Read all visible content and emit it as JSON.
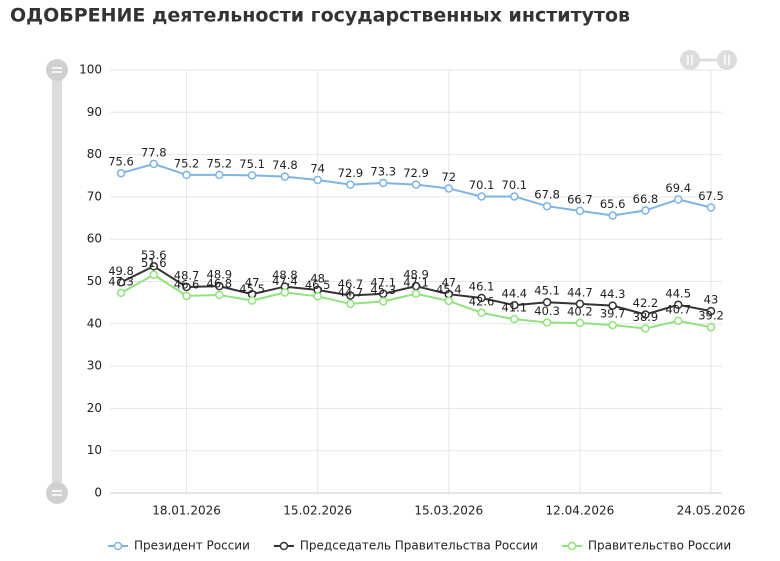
{
  "chart_data": {
    "type": "line",
    "title": "ОДОБРЕНИЕ деятельности государственных институтов",
    "categories": [
      null,
      null,
      "18.01.2026",
      null,
      null,
      null,
      "15.02.2026",
      null,
      null,
      null,
      "15.03.2026",
      null,
      null,
      null,
      "12.04.2026",
      null,
      null,
      null,
      "24.05.2026"
    ],
    "series": [
      {
        "name": "Президент России",
        "color": "#7eb3e3",
        "values": [
          75.6,
          77.8,
          75.2,
          75.2,
          75.1,
          74.8,
          74,
          72.9,
          73.3,
          72.9,
          72,
          70.1,
          70.1,
          67.8,
          66.7,
          65.6,
          66.8,
          69.4,
          67.5
        ]
      },
      {
        "name": "Председатель Правительства России",
        "color": "#333333",
        "values": [
          49.8,
          53.6,
          48.7,
          48.9,
          47,
          48.8,
          48,
          46.7,
          47.1,
          48.9,
          47,
          46.1,
          44.4,
          45.1,
          44.7,
          44.3,
          42.2,
          44.5,
          43
        ]
      },
      {
        "name": "Правительство России",
        "color": "#90e27c",
        "values": [
          47.3,
          51.6,
          46.6,
          46.8,
          45.5,
          47.4,
          46.5,
          44.7,
          45.3,
          47.1,
          45.4,
          42.6,
          41.1,
          40.3,
          40.2,
          39.7,
          38.9,
          40.7,
          39.2
        ]
      }
    ],
    "ylim": [
      0,
      100
    ],
    "yticks": [
      0,
      10,
      20,
      30,
      40,
      50,
      60,
      70,
      80,
      90,
      100
    ],
    "grid": true
  }
}
